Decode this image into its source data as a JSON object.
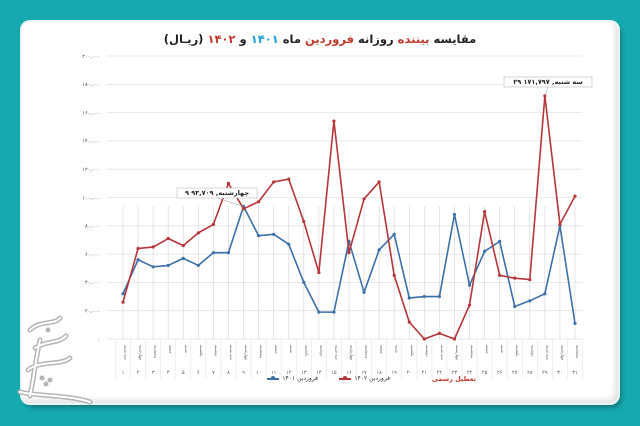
{
  "title": {
    "part1": "مقایسه ",
    "part2": "بیننده",
    "part3": " روزانه ",
    "part4": "فروردین",
    "part5": " ماه ",
    "part6": "۱۴۰۱",
    "part7": " و ",
    "part8": "۱۴۰۲",
    "part9": " (ریـال)"
  },
  "legend": {
    "series_1401": "فروردین ۱۴۰۱",
    "series_1402": "فروردین ۱۴۰۲",
    "holiday": "تعطیل رسمی"
  },
  "annotations": {
    "day9": "۹ چهارشنبه, ۹۳,۷۰۹",
    "day29": "۲۹ سه شنبه, ۱۷۱,۷۹۷"
  },
  "colors": {
    "background": "#16aab0",
    "series_1401": "#3d6fa8",
    "series_1402": "#b5363a",
    "holiday_text": "#c0392b",
    "grid": "#e2e2e2"
  },
  "chart_data": {
    "type": "line",
    "title": "مقایسه بیننده روزانه فروردین ماه ۱۴۰۱ و ۱۴۰۲ (ریـال)",
    "xlabel": "",
    "ylabel": "",
    "ylim": [
      0,
      200000
    ],
    "yticks": [
      0,
      20000,
      40000,
      60000,
      80000,
      100000,
      120000,
      140000,
      160000,
      180000,
      200000
    ],
    "ytick_labels": [
      "۰",
      "۲۰,۰۰۰",
      "۴۰,۰۰۰",
      "۶۰,۰۰۰",
      "۸۰,۰۰۰",
      "۱۰۰,۰۰۰",
      "۱۲۰,۰۰۰",
      "۱۴۰,۰۰۰",
      "۱۶۰,۰۰۰",
      "۱۸۰,۰۰۰",
      "۲۰۰,۰۰۰"
    ],
    "grid": true,
    "legend_position": "bottom",
    "categories": [
      "۱",
      "۲",
      "۳",
      "۴",
      "۵",
      "۶",
      "۷",
      "۸",
      "۹",
      "۱۰",
      "۱۱",
      "۱۲",
      "۱۳",
      "۱۴",
      "۱۵",
      "۱۶",
      "۱۷",
      "۱۸",
      "۱۹",
      "۲۰",
      "۲۱",
      "۲۲",
      "۲۳",
      "۲۴",
      "۲۵",
      "۲۶",
      "۲۷",
      "۲۸",
      "۲۹",
      "۳۰",
      "۳۱"
    ],
    "weekdays": [
      "سه شنبه",
      "چهارشنبه",
      "پنجشنبه",
      "جمعه",
      "شنبه",
      "یکشنبه",
      "دوشنبه",
      "سه شنبه",
      "چهارشنبه",
      "پنجشنبه",
      "جمعه",
      "شنبه",
      "یکشنبه",
      "دوشنبه",
      "سه شنبه",
      "چهارشنبه",
      "پنجشنبه",
      "جمعه",
      "شنبه",
      "یکشنبه",
      "دوشنبه",
      "سه شنبه",
      "چهارشنبه",
      "پنجشنبه",
      "جمعه",
      "شنبه",
      "یکشنبه",
      "دوشنبه",
      "سه شنبه",
      "چهارشنبه",
      "پنجشنبه"
    ],
    "series": [
      {
        "name": "فروردین ۱۴۰۱",
        "color": "#3d6fa8",
        "values": [
          32000,
          56000,
          51000,
          52000,
          57000,
          52000,
          61000,
          61000,
          93709,
          73000,
          74000,
          67000,
          40000,
          19000,
          19000,
          69000,
          33000,
          63000,
          74000,
          29000,
          30000,
          30000,
          88000,
          38000,
          62000,
          69000,
          23000,
          27000,
          32000,
          80000,
          11000
        ]
      },
      {
        "name": "فروردین ۱۴۰۲",
        "color": "#b5363a",
        "values": [
          26000,
          64000,
          65000,
          71000,
          66000,
          75000,
          81000,
          110000,
          92000,
          97000,
          111000,
          113000,
          83000,
          47000,
          154000,
          61000,
          99000,
          111000,
          45000,
          12000,
          0,
          4000,
          0,
          24000,
          90000,
          45000,
          43000,
          42000,
          171797,
          81000,
          101000
        ]
      }
    ],
    "annotations": [
      {
        "series": "فروردین ۱۴۰۱",
        "day": 9,
        "text": "۹ چهارشنبه, ۹۳,۷۰۹"
      },
      {
        "series": "فروردین ۱۴۰۲",
        "day": 29,
        "text": "۲۹ سه شنبه, ۱۷۱,۷۹۷"
      }
    ]
  }
}
